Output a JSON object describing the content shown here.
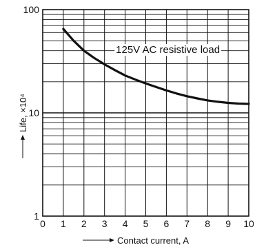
{
  "chart_data": {
    "type": "line",
    "xlabel": "Contact current, A",
    "ylabel": "Life, ×10⁴",
    "xlim": [
      0,
      10
    ],
    "ylim": [
      1,
      100
    ],
    "y_scale": "log",
    "grid": true,
    "x_ticks": [
      "0",
      "1",
      "2",
      "3",
      "4",
      "5",
      "6",
      "7",
      "8",
      "9",
      "10"
    ],
    "y_ticks": [
      {
        "value": 1,
        "label": "1"
      },
      {
        "value": 10,
        "label": "10"
      },
      {
        "value": 100,
        "label": "100"
      }
    ],
    "series": [
      {
        "name": "125V AC resistive load",
        "x": [
          1,
          1.5,
          2,
          2.5,
          3,
          3.5,
          4,
          4.5,
          5,
          5.5,
          6,
          6.5,
          7,
          7.5,
          8,
          8.5,
          9,
          9.5,
          10
        ],
        "y": [
          65,
          50,
          40,
          34,
          29.5,
          26,
          23,
          21,
          19.3,
          17.8,
          16.5,
          15.4,
          14.5,
          13.8,
          13.2,
          12.8,
          12.5,
          12.3,
          12.2
        ]
      }
    ],
    "line_color": "#111111"
  }
}
